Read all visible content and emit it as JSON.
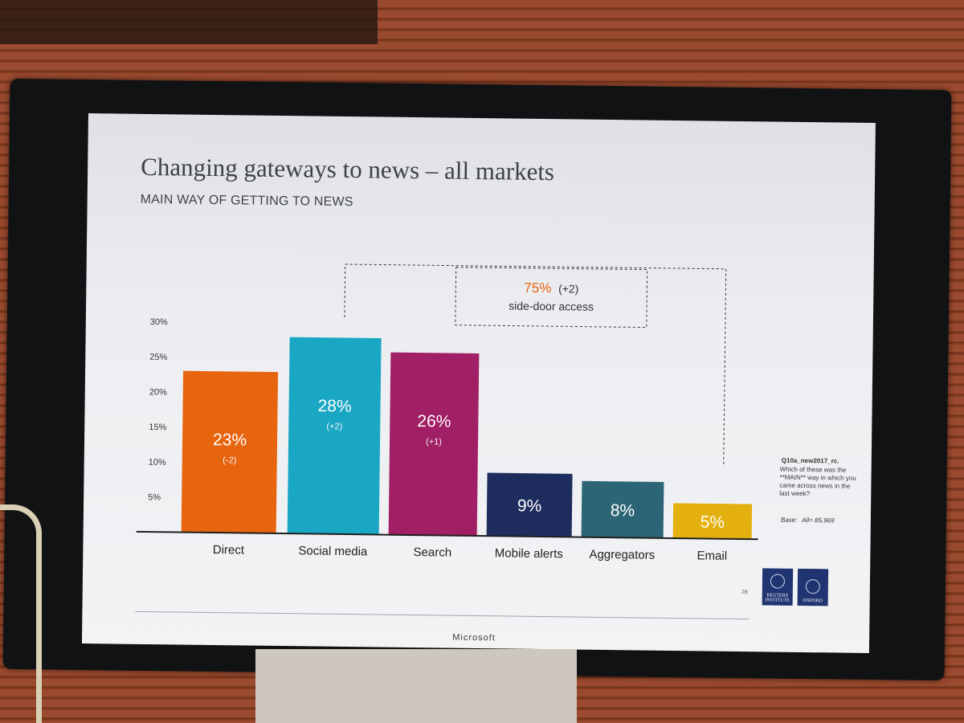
{
  "slide": {
    "title": "Changing gateways to news – all markets",
    "subtitle": "MAIN WAY OF GETTING TO NEWS",
    "page_number": "28"
  },
  "bracket": {
    "value": "75%",
    "change": "(+2)",
    "label": "side-door access"
  },
  "footnote": {
    "code": "Q10a_new2017_rc.",
    "question": "Which of these was the **MAIN** way in which you came across news in the last week?",
    "base_label": "Base:",
    "base_value": "All= 85,969"
  },
  "logos": {
    "reuters": "REUTERS INSTITUTE",
    "oxford": "OXFORD"
  },
  "monitor": {
    "brand": "Microsoft"
  },
  "chart_data": {
    "type": "bar",
    "categories": [
      "Direct",
      "Social media",
      "Search",
      "Mobile alerts",
      "Aggregators",
      "Email"
    ],
    "values": [
      23,
      28,
      26,
      9,
      8,
      5
    ],
    "value_labels": [
      "23%",
      "28%",
      "26%",
      "9%",
      "8%",
      "5%"
    ],
    "changes": [
      "(-2)",
      "(+2)",
      "(+1)",
      "",
      "",
      ""
    ],
    "colors": [
      "#e8650f",
      "#1aa7c4",
      "#a11f64",
      "#1e2d5e",
      "#2c6575",
      "#e4b00f"
    ],
    "ylim": [
      0,
      30
    ],
    "yticks": [
      5,
      10,
      15,
      20,
      25,
      30
    ],
    "ytick_labels": [
      "5%",
      "10%",
      "15%",
      "20%",
      "25%",
      "30%"
    ],
    "grid": false,
    "xlabel": "",
    "ylabel": ""
  }
}
